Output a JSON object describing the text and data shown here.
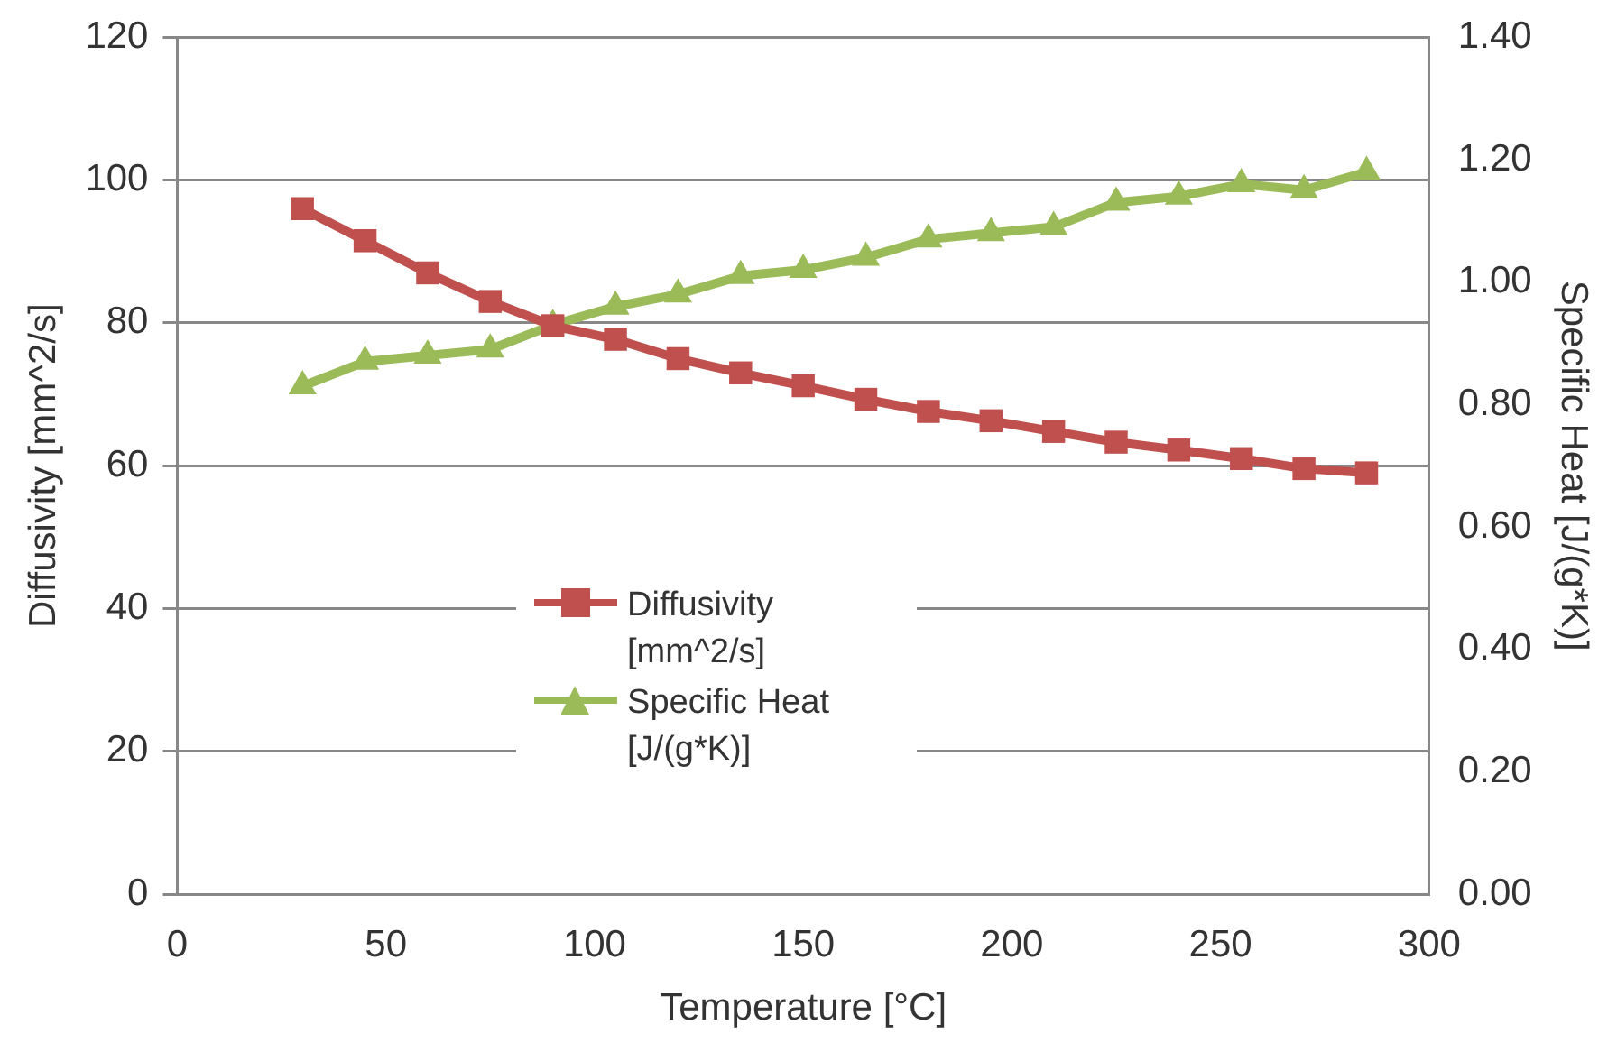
{
  "chart_data": {
    "type": "line",
    "xlabel": "Temperature [°C]",
    "ylabel": "Diffusivity [mm^2/s]",
    "y2label": "Specific Heat [J/(g*K)]",
    "x": [
      30,
      45,
      60,
      75,
      90,
      105,
      120,
      135,
      150,
      165,
      180,
      195,
      210,
      225,
      240,
      255,
      270,
      285
    ],
    "series": [
      {
        "name": "Diffusivity [mm^2/s]",
        "color": "#c0504d",
        "marker": "square",
        "values": [
          96,
          91.5,
          87,
          83,
          79.6,
          77.7,
          75,
          73,
          71.2,
          69.3,
          67.6,
          66.3,
          64.8,
          63.3,
          62.2,
          61,
          59.6,
          59
        ]
      },
      {
        "name": "Specific Heat [J/(g*K)]",
        "color": "#9bbb59",
        "marker": "triangle",
        "axis": "y2",
        "values": [
          0.83,
          0.87,
          0.88,
          0.89,
          0.93,
          0.96,
          0.98,
          1.01,
          1.02,
          1.04,
          1.07,
          1.08,
          1.09,
          1.13,
          1.14,
          1.16,
          1.15,
          1.18
        ]
      }
    ],
    "xlim": [
      0,
      300
    ],
    "xticks": [
      0,
      50,
      100,
      150,
      200,
      250,
      300
    ],
    "ylim": [
      0,
      120
    ],
    "yticks": [
      0,
      20,
      40,
      60,
      80,
      100,
      120
    ],
    "y2lim": [
      0,
      1.4
    ],
    "y2ticks": [
      {
        "value": 0,
        "label": "0.00"
      },
      {
        "value": 0.2,
        "label": "0.20"
      },
      {
        "value": 0.4,
        "label": "0.40"
      },
      {
        "value": 0.6,
        "label": "0.60"
      },
      {
        "value": 0.8,
        "label": "0.80"
      },
      {
        "value": 1,
        "label": "1.00"
      },
      {
        "value": 1.2,
        "label": "1.20"
      },
      {
        "value": 1.4,
        "label": "1.40"
      }
    ],
    "grid": "y",
    "legend": "bottom",
    "line_style": "solid"
  }
}
